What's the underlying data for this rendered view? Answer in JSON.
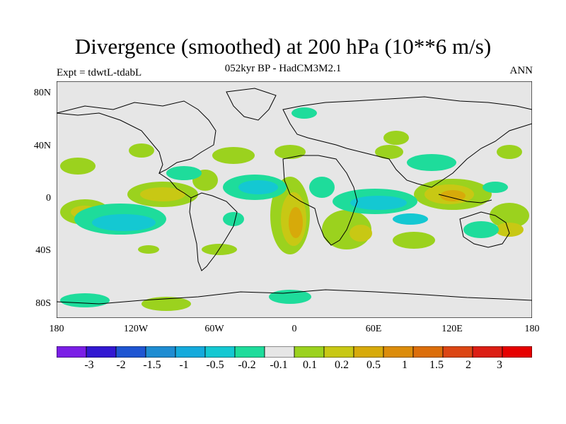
{
  "title": "Divergence (smoothed) at 200 hPa (10**6 m/s)",
  "subtitle": "052kyr BP - HadCM3M2.1",
  "experiment": "Expt = tdwtL-tdabL",
  "season": "ANN",
  "lat_ticks": [
    "80N",
    "40N",
    "0",
    "40S",
    "80S"
  ],
  "lon_ticks": [
    "180",
    "120W",
    "60W",
    "0",
    "60E",
    "120E",
    "180"
  ],
  "colorbar": {
    "colors": [
      "#7a1ee6",
      "#3218d2",
      "#1e55d2",
      "#1e8cd2",
      "#14aadc",
      "#14c8d2",
      "#1edc9b",
      "#e6e6e6",
      "#9bd21e",
      "#c8c814",
      "#d7aa0a",
      "#dc8c0a",
      "#dc6e0a",
      "#dc4614",
      "#dc1e14",
      "#e60000"
    ],
    "labels": [
      "-3",
      "-2",
      "-1.5",
      "-1",
      "-0.5",
      "-0.2",
      "-0.1",
      "0.1",
      "0.2",
      "0.5",
      "1",
      "1.5",
      "2",
      "3"
    ]
  },
  "palette": {
    "neutral": "#e6e6e6",
    "pos_weak": "#9bd21e",
    "pos_mid": "#c8c814",
    "pos_strong": "#d7aa0a",
    "neg_weak": "#1edc9b",
    "neg_mid": "#14c8d2",
    "neg_strong": "#14aadc"
  }
}
